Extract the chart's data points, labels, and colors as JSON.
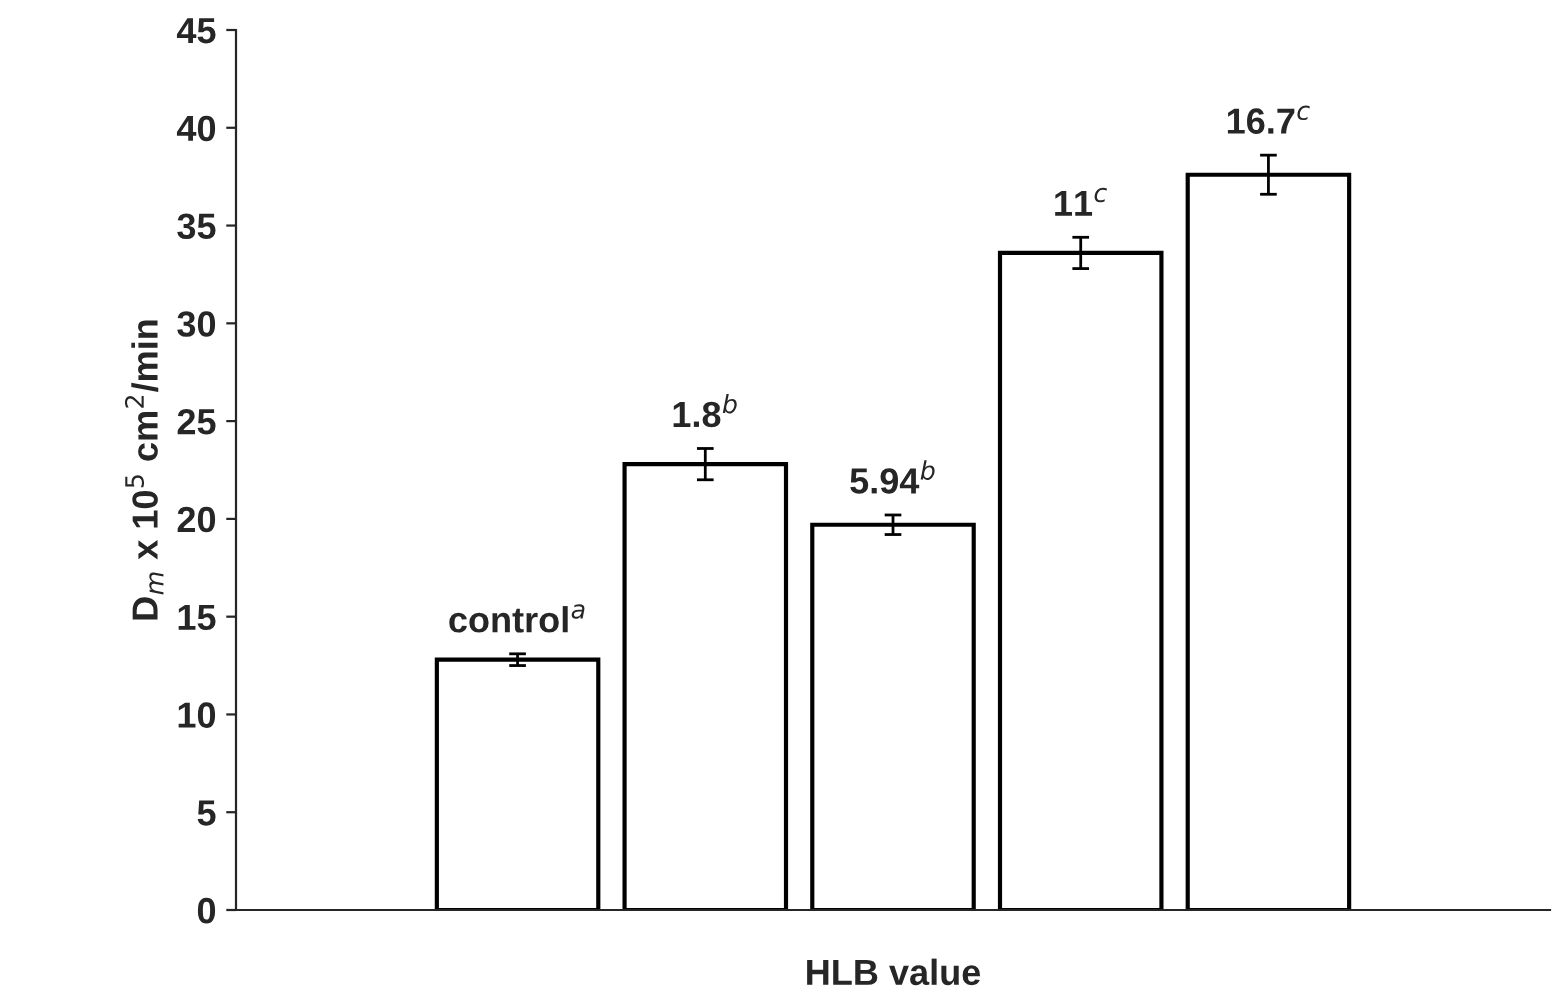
{
  "chart_data": {
    "type": "bar",
    "xlabel": "HLB value",
    "ylabel": "D$_{m}$ x 10$^{5}$ cm$^{2}$/min",
    "categories": [
      null,
      null,
      null,
      null,
      null,
      null,
      null
    ],
    "values": [
      null,
      12.8,
      22.8,
      19.7,
      33.6,
      37.6,
      null
    ],
    "errors": [
      null,
      0.3,
      0.8,
      0.5,
      0.8,
      1.0,
      null
    ],
    "color": "#ffffff",
    "ylim": [
      0,
      45
    ],
    "yticks": [
      0,
      5,
      10,
      15,
      20,
      25,
      30,
      35,
      40,
      45
    ],
    "grid": false,
    "legend": false,
    "annotations": [
      "control$^{a}$",
      "1.8$^{b}$",
      "5.94$^{b}$",
      "11$^{c}$",
      "16.7$^{c}$"
    ]
  }
}
